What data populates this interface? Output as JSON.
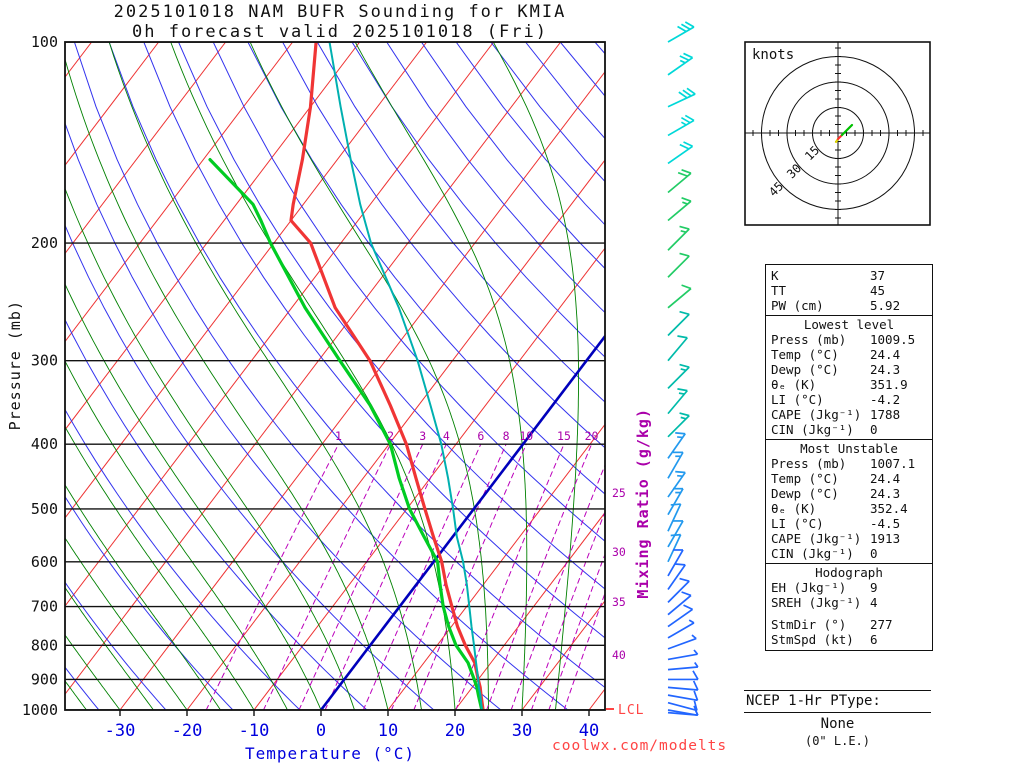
{
  "title": {
    "line1": "2025101018 NAM BUFR Sounding for KMIA",
    "line2": "0h forecast valid 2025101018 (Fri)"
  },
  "watermark": "coolwx.com/modelts",
  "axes": {
    "pressure_label": "Pressure (mb)",
    "temp_label": "Temperature (°C)",
    "mixing_label": "Mixing Ratio (g/kg)",
    "pressure_ticks": [
      100,
      200,
      300,
      400,
      500,
      600,
      700,
      800,
      900,
      1000
    ],
    "temp_ticks": [
      -30,
      -20,
      -10,
      0,
      10,
      20,
      30,
      40
    ],
    "lcl_label": "LCL"
  },
  "chart_data": {
    "type": "line",
    "title": "Skew-T log-P sounding, NAM BUFR KMIA 2025101018 0h",
    "x_axis": {
      "label": "Temperature (°C)",
      "range": [
        -40,
        45
      ]
    },
    "y_axis": {
      "label": "Pressure (mb)",
      "range": [
        1050,
        100
      ],
      "scale": "log"
    },
    "isotherm_step": 10,
    "mixing_ratio_lines": [
      1,
      2,
      3,
      4,
      6,
      8,
      10,
      15,
      20,
      25,
      30,
      35,
      40
    ],
    "series": [
      {
        "name": "temperature",
        "color": "#f03535",
        "points": [
          [
            1009,
            24.4
          ],
          [
            1000,
            24.2
          ],
          [
            950,
            22.2
          ],
          [
            925,
            21.2
          ],
          [
            900,
            20.0
          ],
          [
            850,
            17.6
          ],
          [
            800,
            14.2
          ],
          [
            750,
            10.9
          ],
          [
            700,
            7.8
          ],
          [
            650,
            4.5
          ],
          [
            600,
            1.2
          ],
          [
            550,
            -2.9
          ],
          [
            500,
            -7.3
          ],
          [
            450,
            -12.1
          ],
          [
            400,
            -17.4
          ],
          [
            350,
            -24.2
          ],
          [
            300,
            -32.3
          ],
          [
            250,
            -43.5
          ],
          [
            200,
            -54.5
          ],
          [
            185,
            -60.0
          ],
          [
            175,
            -61.5
          ],
          [
            150,
            -65.2
          ],
          [
            125,
            -70.0
          ],
          [
            100,
            -76.5
          ]
        ]
      },
      {
        "name": "dewpoint",
        "color": "#00cc22",
        "points": [
          [
            1009,
            24.3
          ],
          [
            1000,
            24.0
          ],
          [
            950,
            21.8
          ],
          [
            925,
            20.7
          ],
          [
            900,
            19.4
          ],
          [
            850,
            16.6
          ],
          [
            800,
            12.8
          ],
          [
            750,
            9.6
          ],
          [
            700,
            6.5
          ],
          [
            650,
            3.6
          ],
          [
            600,
            0.6
          ],
          [
            550,
            -4.3
          ],
          [
            500,
            -9.6
          ],
          [
            450,
            -14.6
          ],
          [
            400,
            -19.8
          ],
          [
            350,
            -27.2
          ],
          [
            300,
            -36.8
          ],
          [
            250,
            -48.0
          ],
          [
            200,
            -60.5
          ],
          [
            185,
            -64.5
          ],
          [
            175,
            -67.5
          ],
          [
            150,
            -79.0
          ]
        ]
      },
      {
        "name": "parcel",
        "color": "#00b0b0",
        "points": [
          [
            1009,
            24.4
          ],
          [
            1000,
            24.0
          ],
          [
            950,
            22.1
          ],
          [
            925,
            21.0
          ],
          [
            900,
            20.0
          ],
          [
            850,
            17.8
          ],
          [
            800,
            15.5
          ],
          [
            750,
            13.0
          ],
          [
            700,
            10.4
          ],
          [
            650,
            7.6
          ],
          [
            600,
            4.4
          ],
          [
            550,
            0.6
          ],
          [
            500,
            -3.1
          ],
          [
            450,
            -7.3
          ],
          [
            400,
            -12.2
          ],
          [
            350,
            -18.2
          ],
          [
            300,
            -25.2
          ],
          [
            250,
            -34.0
          ],
          [
            200,
            -45.5
          ],
          [
            175,
            -51.5
          ],
          [
            150,
            -58.0
          ],
          [
            125,
            -65.5
          ],
          [
            100,
            -74.5
          ]
        ]
      }
    ],
    "wind_barbs": [
      {
        "p": 100,
        "spd": 30,
        "dir": 60,
        "color": "#00d8d8"
      },
      {
        "p": 112,
        "spd": 25,
        "dir": 55,
        "color": "#00d8d8"
      },
      {
        "p": 125,
        "spd": 30,
        "dir": 65,
        "color": "#00d8d8"
      },
      {
        "p": 138,
        "spd": 25,
        "dir": 60,
        "color": "#00d8d8"
      },
      {
        "p": 152,
        "spd": 20,
        "dir": 55,
        "color": "#00d8d8"
      },
      {
        "p": 168,
        "spd": 20,
        "dir": 50,
        "color": "#22cc66"
      },
      {
        "p": 185,
        "spd": 15,
        "dir": 50,
        "color": "#22cc66"
      },
      {
        "p": 205,
        "spd": 15,
        "dir": 45,
        "color": "#22cc66"
      },
      {
        "p": 225,
        "spd": 10,
        "dir": 45,
        "color": "#22cc66"
      },
      {
        "p": 250,
        "spd": 10,
        "dir": 50,
        "color": "#22cc66"
      },
      {
        "p": 275,
        "spd": 10,
        "dir": 45,
        "color": "#00bbaa"
      },
      {
        "p": 300,
        "spd": 10,
        "dir": 40,
        "color": "#00bbaa"
      },
      {
        "p": 330,
        "spd": 15,
        "dir": 45,
        "color": "#00bbaa"
      },
      {
        "p": 360,
        "spd": 15,
        "dir": 40,
        "color": "#00bbaa"
      },
      {
        "p": 390,
        "spd": 15,
        "dir": 45,
        "color": "#00bbaa"
      },
      {
        "p": 420,
        "spd": 15,
        "dir": 35,
        "color": "#2299ee"
      },
      {
        "p": 450,
        "spd": 15,
        "dir": 30,
        "color": "#2299ee"
      },
      {
        "p": 480,
        "spd": 15,
        "dir": 35,
        "color": "#2299ee"
      },
      {
        "p": 510,
        "spd": 15,
        "dir": 30,
        "color": "#2299ee"
      },
      {
        "p": 540,
        "spd": 10,
        "dir": 25,
        "color": "#2299ee"
      },
      {
        "p": 570,
        "spd": 10,
        "dir": 30,
        "color": "#2299ee"
      },
      {
        "p": 600,
        "spd": 10,
        "dir": 25,
        "color": "#2299ee"
      },
      {
        "p": 630,
        "spd": 10,
        "dir": 30,
        "color": "#2266ff"
      },
      {
        "p": 660,
        "spd": 10,
        "dir": 35,
        "color": "#2266ff"
      },
      {
        "p": 690,
        "spd": 10,
        "dir": 45,
        "color": "#2266ff"
      },
      {
        "p": 720,
        "spd": 10,
        "dir": 50,
        "color": "#2266ff"
      },
      {
        "p": 750,
        "spd": 10,
        "dir": 55,
        "color": "#2266ff"
      },
      {
        "p": 780,
        "spd": 5,
        "dir": 60,
        "color": "#2266ff"
      },
      {
        "p": 810,
        "spd": 5,
        "dir": 70,
        "color": "#2266ff"
      },
      {
        "p": 840,
        "spd": 5,
        "dir": 80,
        "color": "#2266ff"
      },
      {
        "p": 870,
        "spd": 5,
        "dir": 85,
        "color": "#2266ff"
      },
      {
        "p": 900,
        "spd": 10,
        "dir": 90,
        "color": "#2266ff"
      },
      {
        "p": 925,
        "spd": 10,
        "dir": 95,
        "color": "#2266ff"
      },
      {
        "p": 950,
        "spd": 10,
        "dir": 100,
        "color": "#2266ff"
      },
      {
        "p": 975,
        "spd": 10,
        "dir": 105,
        "color": "#2266ff"
      },
      {
        "p": 1000,
        "spd": 8,
        "dir": 100,
        "color": "#2266ff"
      },
      {
        "p": 1009,
        "spd": 6,
        "dir": 95,
        "color": "#2266ff"
      }
    ],
    "hodograph": {
      "unit_label": "knots",
      "rings_kt": [
        15,
        30,
        45
      ],
      "trace": [
        {
          "name": "low-level",
          "color": "#e0d800",
          "pts": [
            [
              -2,
              9
            ],
            [
              0,
              6
            ]
          ]
        },
        {
          "name": "mid-level",
          "color": "#ff3030",
          "pts": [
            [
              0,
              6
            ],
            [
              4,
              2
            ]
          ]
        },
        {
          "name": "upper-level",
          "color": "#00c000",
          "pts": [
            [
              4,
              2
            ],
            [
              9,
              -3
            ],
            [
              14,
              -8
            ]
          ]
        }
      ]
    }
  },
  "stats": {
    "top": [
      [
        "K",
        "37"
      ],
      [
        "TT",
        "45"
      ],
      [
        "PW (cm)",
        "5.92"
      ]
    ],
    "sections": [
      {
        "title": "Lowest level",
        "rows": [
          [
            "Press (mb)",
            "1009.5"
          ],
          [
            "Temp (°C)",
            "24.4"
          ],
          [
            "Dewp (°C)",
            "24.3"
          ],
          [
            "θₑ (K)",
            "351.9"
          ],
          [
            "LI (°C)",
            "-4.2"
          ],
          [
            "CAPE (Jkg⁻¹)",
            "1788"
          ],
          [
            "CIN (Jkg⁻¹)",
            "0"
          ]
        ]
      },
      {
        "title": "Most Unstable",
        "rows": [
          [
            "Press (mb)",
            "1007.1"
          ],
          [
            "Temp (°C)",
            "24.4"
          ],
          [
            "Dewp (°C)",
            "24.3"
          ],
          [
            "θₑ (K)",
            "352.4"
          ],
          [
            "LI (°C)",
            "-4.5"
          ],
          [
            "CAPE (Jkg⁻¹)",
            "1913"
          ],
          [
            "CIN (Jkg⁻¹)",
            "0"
          ]
        ]
      },
      {
        "title": "Hodograph",
        "rows": [
          [
            "EH (Jkg⁻¹)",
            "9"
          ],
          [
            "SREH (Jkg⁻¹)",
            "4"
          ]
        ],
        "rows2": [
          [
            "StmDir (°)",
            "277"
          ],
          [
            "StmSpd (kt)",
            "6"
          ]
        ]
      }
    ]
  },
  "ptype": {
    "title": "NCEP 1-Hr PType:",
    "value": "None",
    "sub": "(0\" L.E.)"
  }
}
